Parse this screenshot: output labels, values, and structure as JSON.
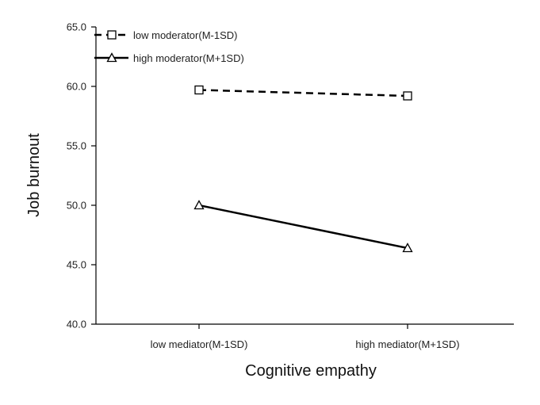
{
  "chart_data": {
    "type": "line",
    "xlabel": "Cognitive empathy",
    "ylabel": "Job burnout",
    "categories": [
      "low mediator(M-1SD)",
      "high mediator(M+1SD)"
    ],
    "ylim": [
      40.0,
      65.0
    ],
    "yticks": [
      "40.0",
      "45.0",
      "50.0",
      "55.0",
      "60.0",
      "65.0"
    ],
    "grid": false,
    "legend_position": "top-left",
    "series": [
      {
        "name": "low moderator(M-1SD)",
        "values": [
          59.7,
          59.2
        ],
        "marker": "square",
        "line_style": "dashed",
        "color": "#000000"
      },
      {
        "name": "high moderator(M+1SD)",
        "values": [
          50.0,
          46.4
        ],
        "marker": "triangle",
        "line_style": "solid",
        "color": "#000000"
      }
    ]
  }
}
